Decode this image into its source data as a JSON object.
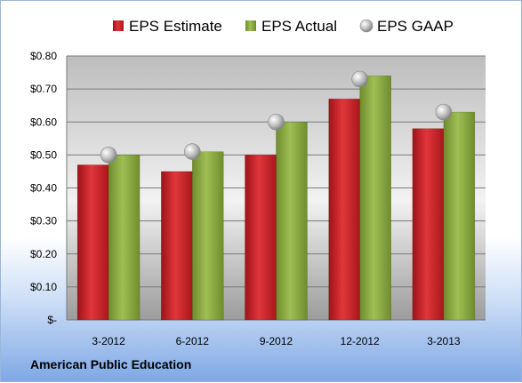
{
  "chart_data": {
    "type": "bar",
    "categories": [
      "3-2012",
      "6-2012",
      "9-2012",
      "12-2012",
      "3-2013"
    ],
    "series": [
      {
        "name": "EPS Estimate",
        "kind": "bar",
        "color": "#cc1f24",
        "values": [
          0.47,
          0.45,
          0.5,
          0.67,
          0.58
        ]
      },
      {
        "name": "EPS Actual",
        "kind": "bar",
        "color": "#88aa3a",
        "values": [
          0.5,
          0.51,
          0.6,
          0.74,
          0.63
        ]
      },
      {
        "name": "EPS GAAP",
        "kind": "marker",
        "color": "#b0b0b0",
        "values": [
          0.5,
          0.51,
          0.6,
          0.73,
          0.63
        ]
      }
    ],
    "ylim": [
      0,
      0.8
    ],
    "yticks": [
      {
        "value": 0.8,
        "label": "$0.80"
      },
      {
        "value": 0.7,
        "label": "$0.70"
      },
      {
        "value": 0.6,
        "label": "$0.60"
      },
      {
        "value": 0.5,
        "label": "$0.50"
      },
      {
        "value": 0.4,
        "label": "$0.40"
      },
      {
        "value": 0.3,
        "label": "$0.30"
      },
      {
        "value": 0.2,
        "label": "$0.20"
      },
      {
        "value": 0.1,
        "label": "$0.10"
      },
      {
        "value": 0.0,
        "label": "$-"
      }
    ],
    "grid": true,
    "legend_position": "top"
  },
  "footer": {
    "company": "American Public Education"
  }
}
